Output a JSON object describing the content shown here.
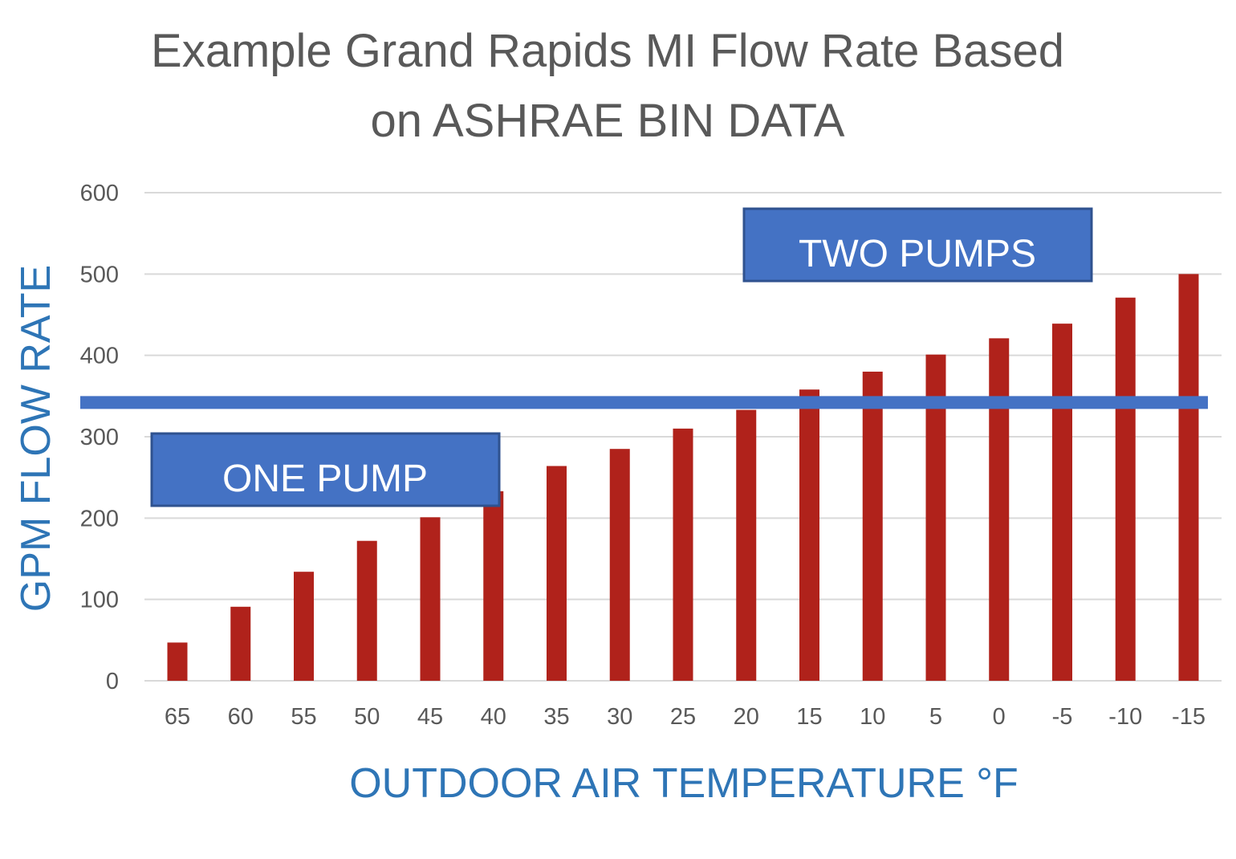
{
  "chart_data": {
    "type": "bar",
    "title_lines": [
      "Example Grand Rapids MI Flow Rate Based",
      "on ASHRAE BIN DATA"
    ],
    "xlabel": "OUTDOOR AIR TEMPERATURE °F",
    "ylabel": "GPM FLOW RATE",
    "categories": [
      "65",
      "60",
      "55",
      "50",
      "45",
      "40",
      "35",
      "30",
      "25",
      "20",
      "15",
      "10",
      "5",
      "0",
      "-5",
      "-10",
      "-15"
    ],
    "values": [
      47,
      91,
      134,
      172,
      201,
      233,
      264,
      285,
      310,
      333,
      358,
      380,
      401,
      421,
      439,
      471,
      500
    ],
    "ylim": [
      0,
      600
    ],
    "yticks": [
      0,
      100,
      200,
      300,
      400,
      500,
      600
    ],
    "grid": true,
    "bar_color": "#b0221b",
    "threshold_line": {
      "value": 350,
      "color": "#4472c4"
    },
    "annotations": {
      "one_pump": "ONE PUMP",
      "two_pumps": "TWO PUMPS",
      "box_color": "#4472c4"
    }
  }
}
